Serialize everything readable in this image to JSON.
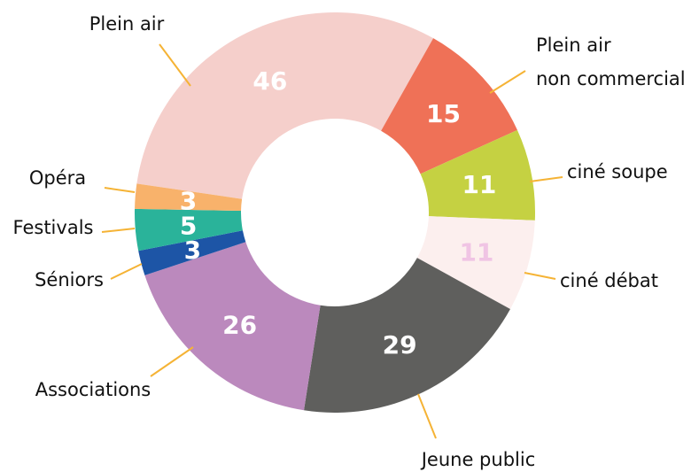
{
  "chart_data": {
    "type": "donut",
    "categories": [
      "Plein air",
      "Plein air non commercial",
      "ciné soupe",
      "ciné débat",
      "Jeune public",
      "Associations",
      "Séniors",
      "Festivals",
      "Opéra"
    ],
    "values": [
      46,
      15,
      11,
      11,
      29,
      26,
      3,
      5,
      3
    ],
    "colors": [
      "#f5cfcb",
      "#ef7157",
      "#c5d142",
      "#fcefee",
      "#5f5f5d",
      "#bb89bd",
      "#1d55a6",
      "#2ab39a",
      "#f8b26b"
    ],
    "value_label_colors": [
      "#ffffff",
      "#ffffff",
      "#ffffff",
      "#f0c4e4",
      "#ffffff",
      "#ffffff",
      "#ffffff",
      "#ffffff",
      "#ffffff"
    ]
  }
}
